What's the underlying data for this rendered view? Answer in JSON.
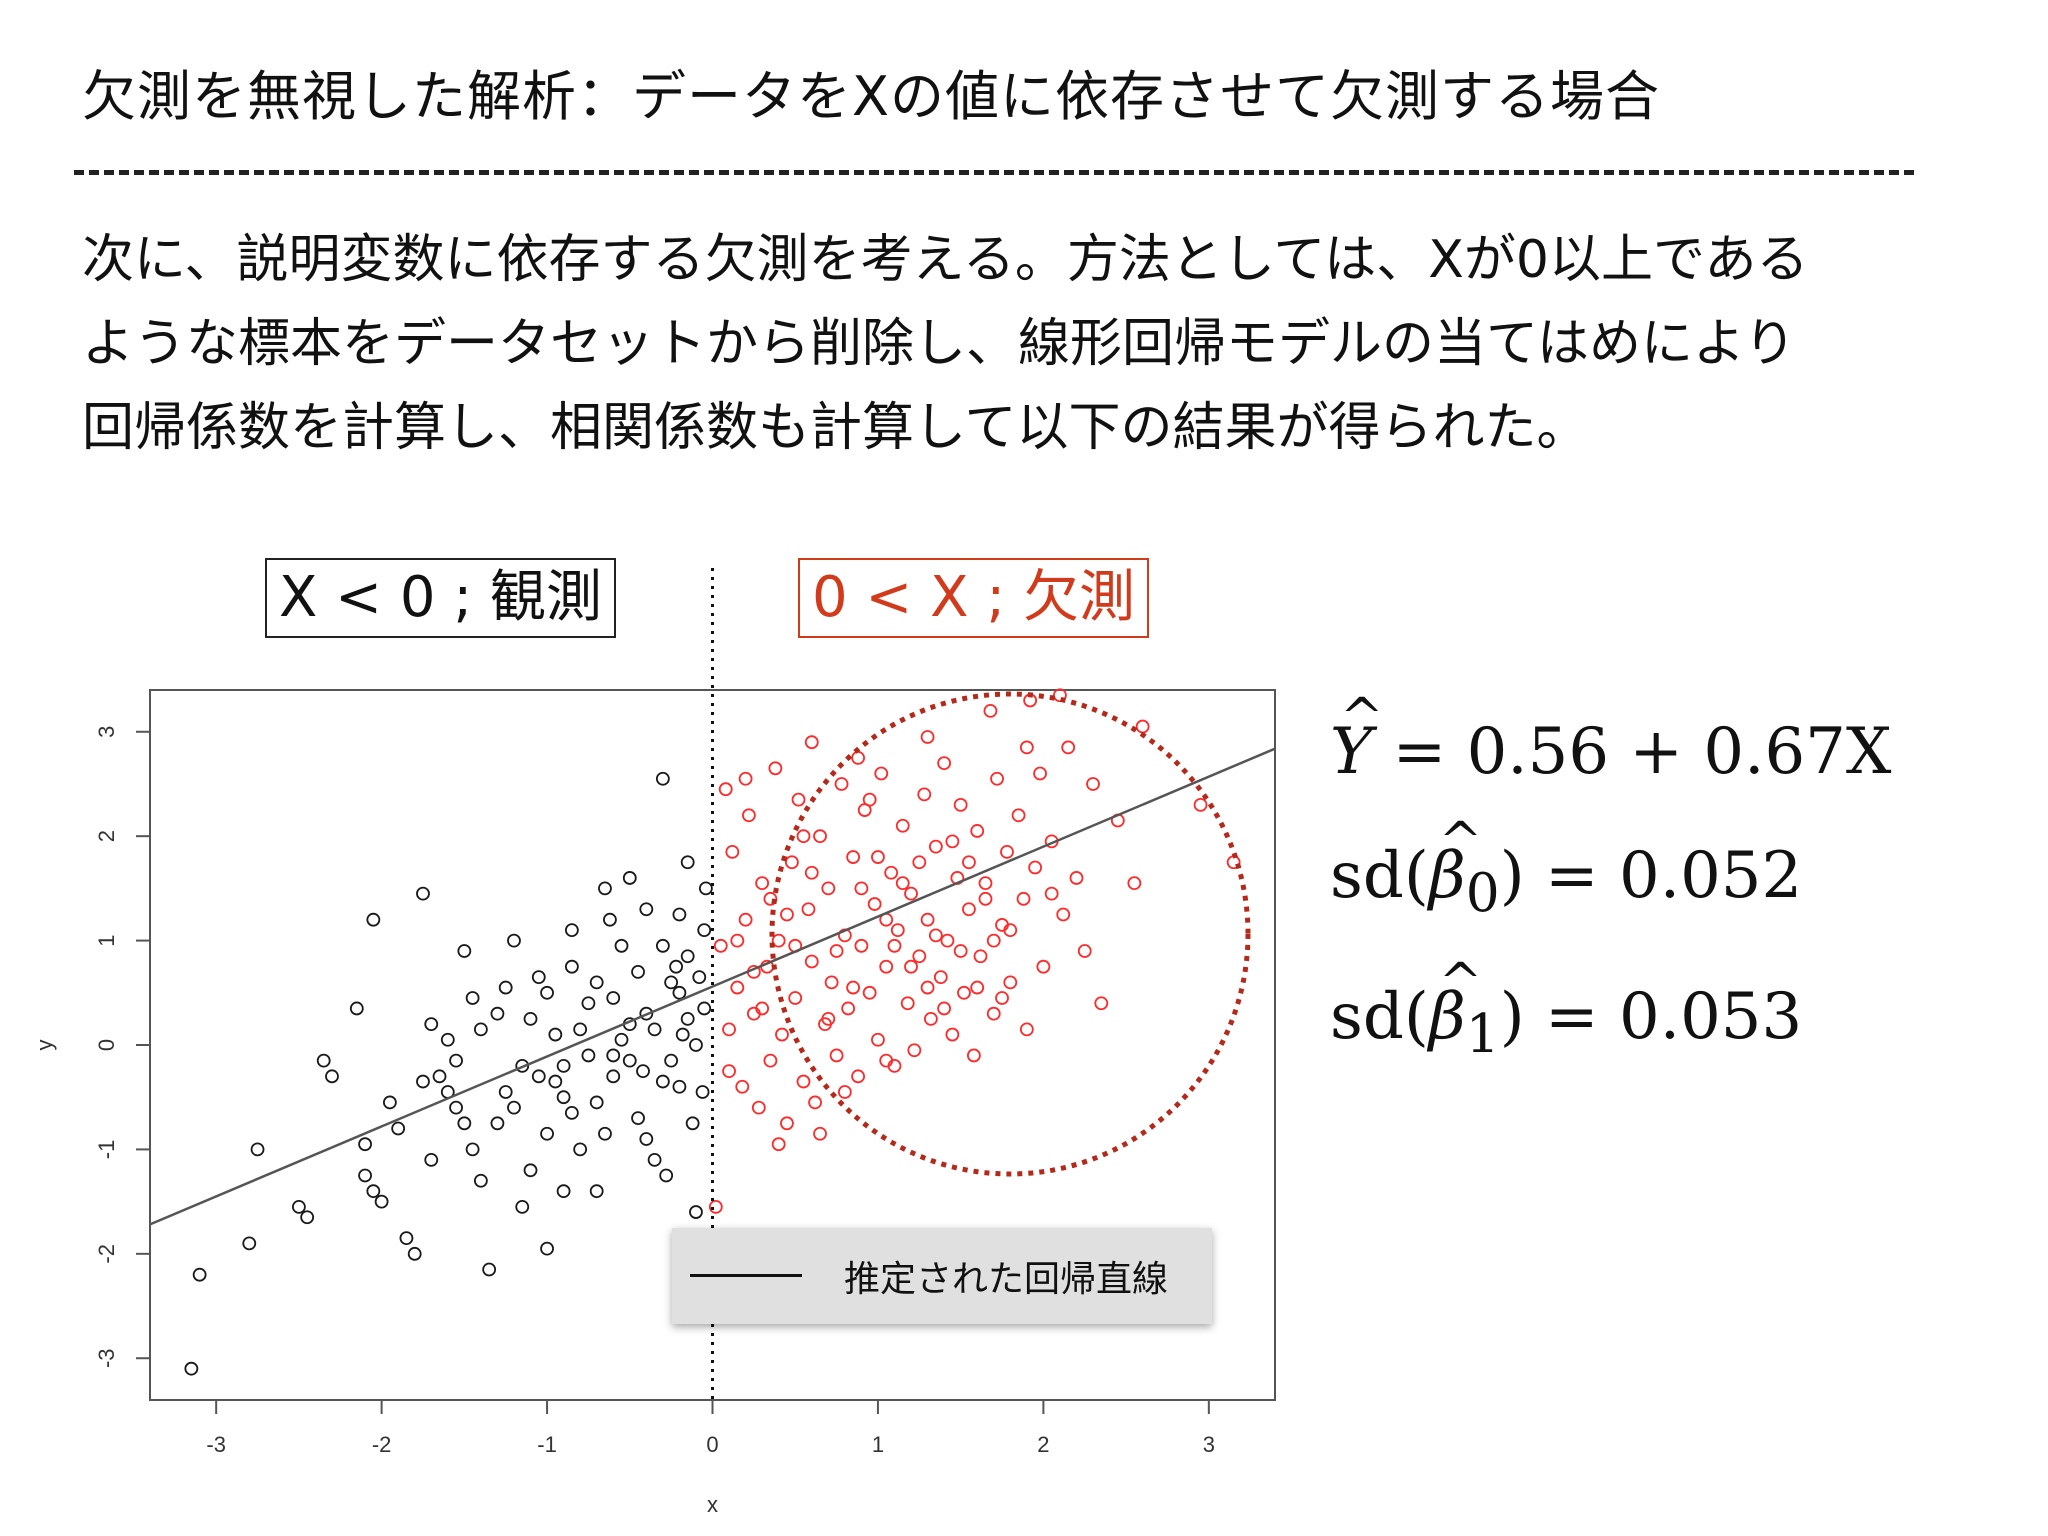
{
  "slide": {
    "title": "欠測を無視した解析：データをXの値に依存させて欠測する場合",
    "body_lines": [
      "次に、説明変数に依存する欠測を考える。方法としては、Xが0以上である",
      "ような標本をデータセットから削除し、線形回帰モデルの当てはめにより",
      "回帰係数を計算し、相関係数も計算して以下の結果が得られた。"
    ],
    "observed_label": "X < 0 ; 観測",
    "missing_label": "0 < X ; 欠測",
    "equations": {
      "y_hat_symbol": "Y",
      "line1_rest": " = 0.56 + 0.67X",
      "sd_prefix": "sd(",
      "beta_symbol": "β",
      "b0_sub": "0",
      "b1_sub": "1",
      "line2_rest": ") = 0.052",
      "line3_rest": ") = 0.053"
    },
    "colors": {
      "observed_points": "#1a1a1a",
      "missing_points": "#ff2a2a",
      "missing_label": "#d23a1c",
      "ellipse": "#b5291a",
      "regression_line": "#555555"
    }
  },
  "chart_data": {
    "type": "scatter",
    "xlabel": "x",
    "ylabel": "y",
    "xlim": [
      -3.4,
      3.4
    ],
    "ylim": [
      -3.4,
      3.4
    ],
    "x_ticks": [
      -3,
      -2,
      -1,
      0,
      1,
      2,
      3
    ],
    "y_ticks": [
      -3,
      -2,
      -1,
      0,
      1,
      2,
      3
    ],
    "x_tick_labels": [
      "-3",
      "-2",
      "-1",
      "0",
      "1",
      "2",
      "3"
    ],
    "y_tick_labels": [
      "-3",
      "-2",
      "-1",
      "0",
      "1",
      "2",
      "3"
    ],
    "threshold_x": 0,
    "regression": {
      "intercept": 0.56,
      "slope": 0.67
    },
    "legend": {
      "label": "推定された回帰直線",
      "placement": "bottom-right"
    },
    "series": [
      {
        "name": "X < 0 ; 観測",
        "color": "#1a1a1a",
        "points": [
          [
            -3.15,
            -3.1
          ],
          [
            -3.1,
            -2.2
          ],
          [
            -2.8,
            -1.9
          ],
          [
            -2.75,
            -1.0
          ],
          [
            -2.5,
            -1.55
          ],
          [
            -2.45,
            -1.65
          ],
          [
            -2.35,
            -0.15
          ],
          [
            -2.3,
            -0.3
          ],
          [
            -2.15,
            0.35
          ],
          [
            -2.1,
            -0.95
          ],
          [
            -2.1,
            -1.25
          ],
          [
            -2.05,
            -1.4
          ],
          [
            -2.0,
            -1.5
          ],
          [
            -2.05,
            1.2
          ],
          [
            -1.95,
            -0.55
          ],
          [
            -1.9,
            -0.8
          ],
          [
            -1.85,
            -1.85
          ],
          [
            -1.8,
            -2.0
          ],
          [
            -1.75,
            1.45
          ],
          [
            -1.7,
            -1.1
          ],
          [
            -1.7,
            0.2
          ],
          [
            -1.65,
            -0.3
          ],
          [
            -1.6,
            0.05
          ],
          [
            -1.55,
            -0.6
          ],
          [
            -1.5,
            -0.75
          ],
          [
            -1.5,
            0.9
          ],
          [
            -1.45,
            0.45
          ],
          [
            -1.4,
            -1.3
          ],
          [
            -1.35,
            -2.15
          ],
          [
            -1.3,
            0.3
          ],
          [
            -1.25,
            -0.45
          ],
          [
            -1.2,
            1.0
          ],
          [
            -1.15,
            -0.2
          ],
          [
            -1.1,
            -1.2
          ],
          [
            -1.05,
            0.65
          ],
          [
            -1.0,
            -0.85
          ],
          [
            -1.0,
            -1.95
          ],
          [
            -0.95,
            0.1
          ],
          [
            -0.9,
            -0.5
          ],
          [
            -0.85,
            0.75
          ],
          [
            -0.8,
            -1.0
          ],
          [
            -0.75,
            0.4
          ],
          [
            -0.7,
            -1.4
          ],
          [
            -0.65,
            1.5
          ],
          [
            -0.6,
            -0.3
          ],
          [
            -0.55,
            0.95
          ],
          [
            -0.5,
            0.2
          ],
          [
            -0.45,
            -0.7
          ],
          [
            -0.4,
            1.3
          ],
          [
            -0.35,
            -1.1
          ],
          [
            -0.3,
            2.55
          ],
          [
            -0.25,
            0.6
          ],
          [
            -0.2,
            -0.4
          ],
          [
            -0.15,
            1.75
          ],
          [
            -0.1,
            -1.6
          ],
          [
            -0.05,
            1.1
          ],
          [
            -1.6,
            -0.45
          ],
          [
            -1.4,
            0.15
          ],
          [
            -1.2,
            -0.6
          ],
          [
            -1.0,
            0.5
          ],
          [
            -0.9,
            -0.2
          ],
          [
            -0.8,
            0.15
          ],
          [
            -0.7,
            -0.55
          ],
          [
            -0.6,
            0.45
          ],
          [
            -0.5,
            -0.15
          ],
          [
            -0.4,
            0.3
          ],
          [
            -0.3,
            -0.35
          ],
          [
            -0.2,
            0.5
          ],
          [
            -0.1,
            0.0
          ],
          [
            -0.05,
            0.35
          ],
          [
            -1.3,
            -0.75
          ],
          [
            -1.1,
            0.25
          ],
          [
            -0.95,
            -0.35
          ],
          [
            -0.75,
            -0.1
          ],
          [
            -0.55,
            0.05
          ],
          [
            -0.45,
            0.7
          ],
          [
            -0.35,
            0.15
          ],
          [
            -0.25,
            -0.15
          ],
          [
            -0.15,
            0.25
          ],
          [
            -0.08,
            0.65
          ],
          [
            -1.55,
            -0.15
          ],
          [
            -1.25,
            0.55
          ],
          [
            -0.85,
            1.1
          ],
          [
            -0.65,
            -0.85
          ],
          [
            -0.4,
            -0.9
          ],
          [
            -0.2,
            1.25
          ],
          [
            -0.12,
            -0.75
          ],
          [
            -0.5,
            1.6
          ],
          [
            -0.3,
            0.95
          ],
          [
            -0.15,
            0.85
          ],
          [
            -0.9,
            -1.4
          ],
          [
            -1.05,
            -0.3
          ],
          [
            -0.7,
            0.6
          ],
          [
            -0.6,
            -0.1
          ],
          [
            -0.28,
            -1.25
          ],
          [
            -0.18,
            0.1
          ],
          [
            -0.06,
            -0.45
          ],
          [
            -0.04,
            1.5
          ],
          [
            -1.75,
            -0.35
          ],
          [
            -1.45,
            -1.0
          ],
          [
            -1.15,
            -1.55
          ],
          [
            -0.85,
            -0.65
          ],
          [
            -0.62,
            1.2
          ],
          [
            -0.42,
            -0.25
          ],
          [
            -0.22,
            0.75
          ]
        ]
      },
      {
        "name": "0 < X ; 欠測",
        "color": "#ff2a2a",
        "points": [
          [
            0.02,
            -1.55
          ],
          [
            0.05,
            0.95
          ],
          [
            0.08,
            2.45
          ],
          [
            0.1,
            -0.25
          ],
          [
            0.12,
            1.85
          ],
          [
            0.15,
            0.55
          ],
          [
            0.18,
            -0.4
          ],
          [
            0.2,
            1.2
          ],
          [
            0.22,
            2.2
          ],
          [
            0.25,
            0.3
          ],
          [
            0.28,
            -0.6
          ],
          [
            0.3,
            1.55
          ],
          [
            0.33,
            0.75
          ],
          [
            0.35,
            -0.15
          ],
          [
            0.38,
            2.65
          ],
          [
            0.4,
            1.0
          ],
          [
            0.42,
            0.1
          ],
          [
            0.45,
            -0.75
          ],
          [
            0.48,
            1.75
          ],
          [
            0.5,
            0.45
          ],
          [
            0.52,
            2.35
          ],
          [
            0.55,
            -0.35
          ],
          [
            0.58,
            1.3
          ],
          [
            0.6,
            0.8
          ],
          [
            0.62,
            -0.55
          ],
          [
            0.65,
            2.0
          ],
          [
            0.68,
            0.2
          ],
          [
            0.7,
            1.5
          ],
          [
            0.72,
            0.6
          ],
          [
            0.75,
            -0.1
          ],
          [
            0.78,
            2.5
          ],
          [
            0.8,
            1.05
          ],
          [
            0.82,
            0.35
          ],
          [
            0.85,
            1.8
          ],
          [
            0.88,
            -0.3
          ],
          [
            0.9,
            0.95
          ],
          [
            0.92,
            2.25
          ],
          [
            0.95,
            0.5
          ],
          [
            0.98,
            1.35
          ],
          [
            1.0,
            0.05
          ],
          [
            1.02,
            2.6
          ],
          [
            1.05,
            0.75
          ],
          [
            1.08,
            1.65
          ],
          [
            1.1,
            -0.2
          ],
          [
            1.12,
            1.1
          ],
          [
            1.15,
            2.1
          ],
          [
            1.18,
            0.4
          ],
          [
            1.2,
            1.45
          ],
          [
            1.22,
            -0.05
          ],
          [
            1.25,
            0.85
          ],
          [
            1.28,
            2.4
          ],
          [
            1.3,
            1.2
          ],
          [
            1.32,
            0.25
          ],
          [
            1.35,
            1.9
          ],
          [
            1.38,
            0.65
          ],
          [
            1.4,
            2.7
          ],
          [
            1.42,
            1.0
          ],
          [
            1.45,
            0.1
          ],
          [
            1.48,
            1.6
          ],
          [
            1.5,
            2.3
          ],
          [
            1.52,
            0.5
          ],
          [
            1.55,
            1.3
          ],
          [
            1.58,
            -0.1
          ],
          [
            1.6,
            2.05
          ],
          [
            1.62,
            0.85
          ],
          [
            1.65,
            1.55
          ],
          [
            1.68,
            3.2
          ],
          [
            1.7,
            0.3
          ],
          [
            1.72,
            2.55
          ],
          [
            1.75,
            1.15
          ],
          [
            1.78,
            1.85
          ],
          [
            1.8,
            0.6
          ],
          [
            1.85,
            2.2
          ],
          [
            1.88,
            1.4
          ],
          [
            1.9,
            0.15
          ],
          [
            1.92,
            3.3
          ],
          [
            1.95,
            1.7
          ],
          [
            1.98,
            2.6
          ],
          [
            2.0,
            0.75
          ],
          [
            2.05,
            1.95
          ],
          [
            2.1,
            3.35
          ],
          [
            2.12,
            1.25
          ],
          [
            2.15,
            2.85
          ],
          [
            2.2,
            1.6
          ],
          [
            2.3,
            2.5
          ],
          [
            2.35,
            0.4
          ],
          [
            2.45,
            2.15
          ],
          [
            2.55,
            1.55
          ],
          [
            2.6,
            3.05
          ],
          [
            2.95,
            2.3
          ],
          [
            3.15,
            1.75
          ],
          [
            0.15,
            1.0
          ],
          [
            0.3,
            0.35
          ],
          [
            0.45,
            1.25
          ],
          [
            0.6,
            1.65
          ],
          [
            0.75,
            0.9
          ],
          [
            0.9,
            1.5
          ],
          [
            1.05,
            1.2
          ],
          [
            1.2,
            0.75
          ],
          [
            1.35,
            1.05
          ],
          [
            1.5,
            0.9
          ],
          [
            1.65,
            1.4
          ],
          [
            1.8,
            1.1
          ],
          [
            0.25,
            0.7
          ],
          [
            0.5,
            0.95
          ],
          [
            0.7,
            0.25
          ],
          [
            0.85,
            0.55
          ],
          [
            1.0,
            1.8
          ],
          [
            1.15,
            1.55
          ],
          [
            1.3,
            0.55
          ],
          [
            1.45,
            1.95
          ],
          [
            1.6,
            0.55
          ],
          [
            0.1,
            0.15
          ],
          [
            0.35,
            1.4
          ],
          [
            0.55,
            2.0
          ],
          [
            0.8,
            -0.45
          ],
          [
            0.95,
            2.35
          ],
          [
            1.1,
            0.95
          ],
          [
            1.25,
            1.75
          ],
          [
            1.4,
            0.35
          ],
          [
            1.55,
            1.75
          ],
          [
            1.7,
            1.0
          ],
          [
            0.2,
            2.55
          ],
          [
            0.4,
            -0.95
          ],
          [
            0.65,
            -0.85
          ],
          [
            0.88,
            2.75
          ],
          [
            1.05,
            -0.15
          ],
          [
            1.75,
            0.45
          ],
          [
            2.05,
            1.45
          ],
          [
            2.25,
            0.9
          ],
          [
            1.9,
            2.85
          ],
          [
            1.3,
            2.95
          ],
          [
            0.6,
            2.9
          ]
        ]
      }
    ]
  }
}
